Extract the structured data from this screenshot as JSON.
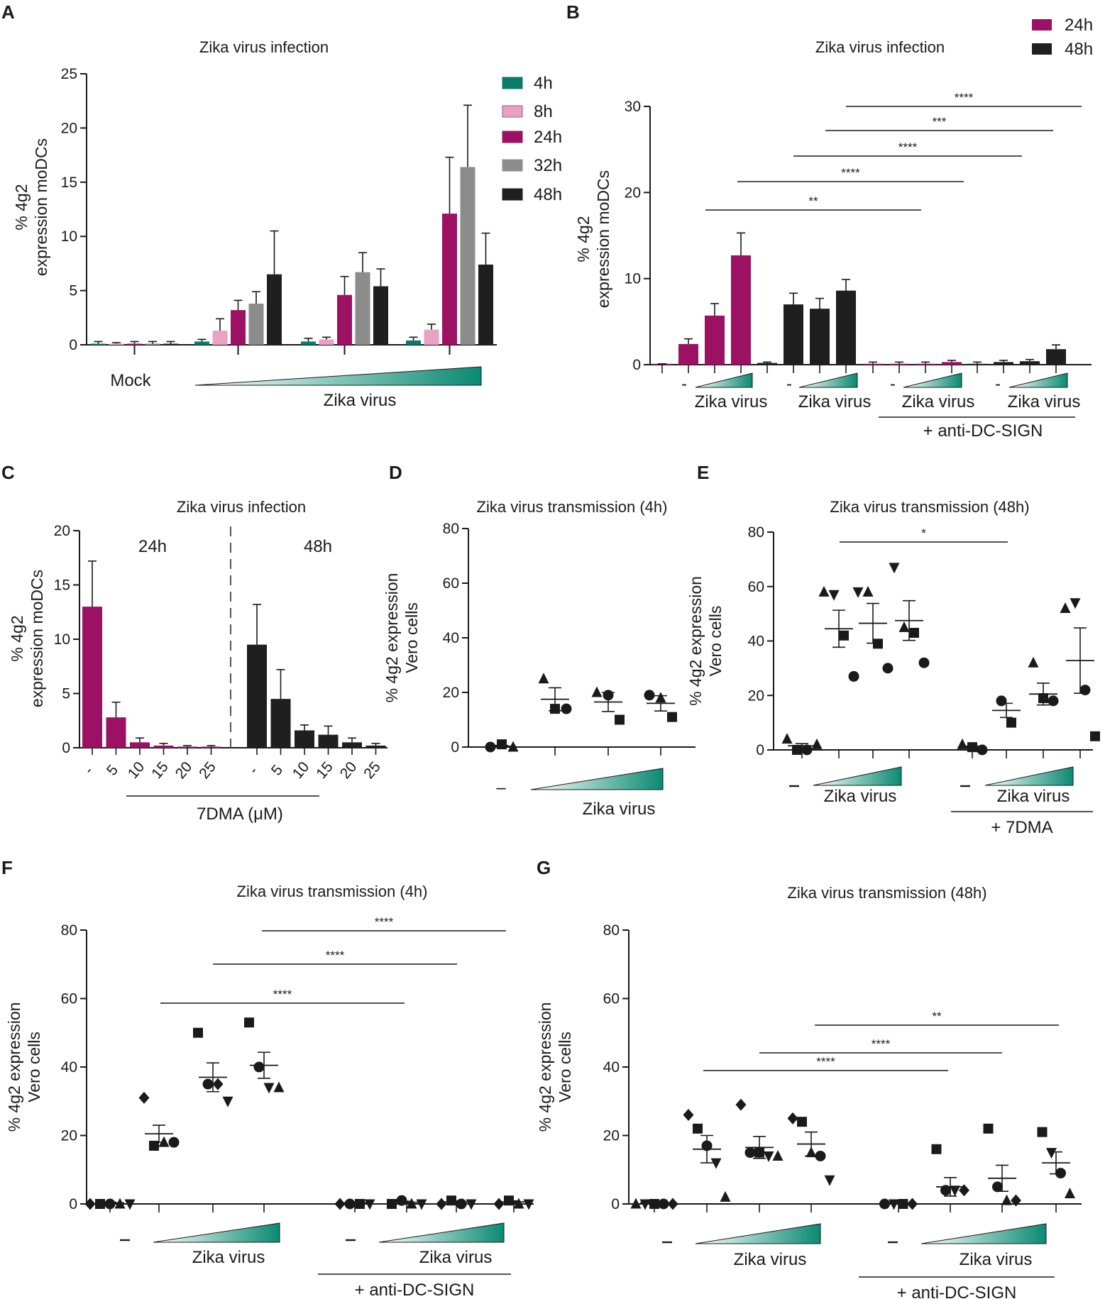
{
  "colors": {
    "h4": "#0b7a68",
    "h8": "#e8a3c4",
    "h24": "#9c1163",
    "h32": "#8c8c8c",
    "h48": "#1f1f1f",
    "teal": "#0a8a72",
    "axis": "#1a1a1a"
  },
  "chart_data": [
    {
      "panel": "A",
      "type": "bar",
      "title": "Zika virus infection",
      "ylabel": "% 4g2 expression moDCs",
      "ylim": [
        0,
        25
      ],
      "yticks": [
        "0",
        "5",
        "10",
        "15",
        "20",
        "25"
      ],
      "legend": [
        "4h",
        "8h",
        "24h",
        "32h",
        "48h"
      ],
      "groups": [
        {
          "label": "Mock",
          "values": [
            0.1,
            0.1,
            0.1,
            0.1,
            0.1
          ],
          "errors": [
            0.2,
            0.1,
            0.2,
            0.2,
            0.2
          ]
        },
        {
          "label": "",
          "values": [
            0.3,
            1.3,
            3.2,
            3.8,
            6.5
          ],
          "errors": [
            0.2,
            1.1,
            0.9,
            1.1,
            4.0
          ]
        },
        {
          "label": "",
          "values": [
            0.3,
            0.5,
            4.6,
            6.7,
            5.4
          ],
          "errors": [
            0.3,
            0.2,
            1.7,
            1.8,
            1.6
          ]
        },
        {
          "label": "",
          "values": [
            0.4,
            1.4,
            12.1,
            16.4,
            7.4
          ],
          "errors": [
            0.3,
            0.5,
            5.2,
            5.7,
            2.9
          ]
        }
      ],
      "xgroup_label": "Zika virus"
    },
    {
      "panel": "B",
      "type": "bar",
      "title": "Zika virus infection",
      "ylabel": "% 4g2 expression moDCs",
      "ylim": [
        0,
        30
      ],
      "yticks": [
        "0",
        "10",
        "20",
        "30"
      ],
      "legend": [
        "24h",
        "48h"
      ],
      "groups": [
        {
          "series": "24h",
          "dash_label": "-",
          "values": [
            0.1,
            2.4,
            5.7,
            12.7
          ],
          "errors": [
            0,
            0.6,
            1.4,
            2.6
          ],
          "label": "Zika virus"
        },
        {
          "series": "48h",
          "dash_label": "-",
          "values": [
            0.2,
            7.0,
            6.5,
            8.6
          ],
          "errors": [
            0.1,
            1.3,
            1.2,
            1.3
          ],
          "label": "Zika virus"
        },
        {
          "series": "24h",
          "dash_label": "-",
          "values": [
            0.1,
            0.1,
            0.1,
            0.3
          ],
          "errors": [
            0.2,
            0.2,
            0.2,
            0.2
          ],
          "label": "Zika virus"
        },
        {
          "series": "48h",
          "dash_label": "-",
          "values": [
            0.1,
            0.3,
            0.4,
            1.8
          ],
          "errors": [
            0.2,
            0.2,
            0.2,
            0.5
          ],
          "label": "Zika virus"
        }
      ],
      "bracket_label": "+ anti-DC-SIGN",
      "significance": [
        "****",
        "***",
        "****",
        "****",
        "**"
      ]
    },
    {
      "panel": "C",
      "type": "bar",
      "title": "Zika virus infection",
      "ylabel": "% 4g2 expression moDCs",
      "ylim": [
        0,
        20
      ],
      "yticks": [
        "0",
        "5",
        "10",
        "15",
        "20"
      ],
      "segment_labels": [
        "24h",
        "48h"
      ],
      "categories": [
        "-",
        "5",
        "10",
        "15",
        "20",
        "25"
      ],
      "series": [
        {
          "name": "24h",
          "values": [
            13.0,
            2.8,
            0.5,
            0.2,
            0.1,
            0.1
          ],
          "errors": [
            4.2,
            1.4,
            0.4,
            0.2,
            0.1,
            0.1
          ]
        },
        {
          "name": "48h",
          "values": [
            9.5,
            4.5,
            1.6,
            1.2,
            0.5,
            0.2
          ],
          "errors": [
            3.7,
            2.7,
            0.5,
            0.8,
            0.4,
            0.2
          ]
        }
      ],
      "xlabel": "7DMA (μM)"
    },
    {
      "panel": "D",
      "type": "scatter",
      "title": "Zika virus transmission (4h)",
      "ylabel": "% 4g2 expression Vero cells",
      "ylim": [
        0,
        80
      ],
      "yticks": [
        "0",
        "20",
        "40",
        "60",
        "80"
      ],
      "dash_label": "–",
      "xgroup_label": "Zika virus",
      "groups": [
        {
          "mean": 0.3,
          "sem": 0.3,
          "points": [
            {
              "shape": "circle",
              "y": 0
            },
            {
              "shape": "square",
              "y": 1
            },
            {
              "shape": "triangle",
              "y": 0
            }
          ]
        },
        {
          "mean": 17.5,
          "sem": 4.2,
          "points": [
            {
              "shape": "triangle",
              "y": 25
            },
            {
              "shape": "square",
              "y": 14
            },
            {
              "shape": "circle",
              "y": 14
            }
          ]
        },
        {
          "mean": 16.5,
          "sem": 3.5,
          "points": [
            {
              "shape": "triangle",
              "y": 20
            },
            {
              "shape": "circle",
              "y": 19
            },
            {
              "shape": "square",
              "y": 10
            }
          ]
        },
        {
          "mean": 16.0,
          "sem": 2.8,
          "points": [
            {
              "shape": "circle",
              "y": 19
            },
            {
              "shape": "triangle",
              "y": 18
            },
            {
              "shape": "square",
              "y": 11
            }
          ]
        }
      ]
    },
    {
      "panel": "E",
      "type": "scatter",
      "title": "Zika virus transmission (48h)",
      "ylabel": "% 4g2 expression Vero cells",
      "ylim": [
        0,
        80
      ],
      "yticks": [
        "0",
        "20",
        "40",
        "60",
        "80"
      ],
      "labels": [
        "Zika virus",
        "Zika virus"
      ],
      "bracket_label": "+ 7DMA",
      "significance": [
        "*"
      ],
      "groups": [
        {
          "mean": 1.5,
          "sem": 0.8,
          "points": [
            {
              "shape": "triangle",
              "y": 4
            },
            {
              "shape": "square",
              "y": 0
            },
            {
              "shape": "circle",
              "y": 0
            },
            {
              "shape": "triangle",
              "y": 2
            }
          ]
        },
        {
          "mean": 44.5,
          "sem": 6.8,
          "points": [
            {
              "shape": "triangle",
              "y": 58
            },
            {
              "shape": "triangle_down",
              "y": 57
            },
            {
              "shape": "square",
              "y": 42
            },
            {
              "shape": "circle",
              "y": 27
            }
          ]
        },
        {
          "mean": 46.5,
          "sem": 7.3,
          "points": [
            {
              "shape": "triangle_down",
              "y": 58
            },
            {
              "shape": "triangle",
              "y": 58
            },
            {
              "shape": "square",
              "y": 39
            },
            {
              "shape": "circle",
              "y": 30
            }
          ]
        },
        {
          "mean": 47.5,
          "sem": 7.3,
          "points": [
            {
              "shape": "triangle_down",
              "y": 67
            },
            {
              "shape": "triangle",
              "y": 45
            },
            {
              "shape": "square",
              "y": 43
            },
            {
              "shape": "circle",
              "y": 32
            }
          ]
        },
        {
          "mean": 1.0,
          "sem": 0.4,
          "points": [
            {
              "shape": "triangle",
              "y": 2
            },
            {
              "shape": "square",
              "y": 1
            },
            {
              "shape": "circle",
              "y": 0
            }
          ]
        },
        {
          "mean": 14.5,
          "sem": 2.6,
          "points": [
            {
              "shape": "circle",
              "y": 18
            },
            {
              "shape": "square",
              "y": 10
            }
          ]
        },
        {
          "mean": 20.5,
          "sem": 4.0,
          "points": [
            {
              "shape": "triangle",
              "y": 32
            },
            {
              "shape": "square",
              "y": 19
            },
            {
              "shape": "circle",
              "y": 18
            }
          ]
        },
        {
          "mean": 32.8,
          "sem": 12.0,
          "points": [
            {
              "shape": "triangle",
              "y": 52
            },
            {
              "shape": "triangle_down",
              "y": 54
            },
            {
              "shape": "circle",
              "y": 22
            },
            {
              "shape": "square",
              "y": 5
            }
          ]
        }
      ]
    },
    {
      "panel": "F",
      "type": "scatter",
      "title": "Zika virus transmission (4h)",
      "ylabel": "% 4g2 expression Vero cells",
      "ylim": [
        0,
        80
      ],
      "yticks": [
        "0",
        "20",
        "40",
        "60",
        "80"
      ],
      "labels": [
        "Zika virus",
        "Zika virus"
      ],
      "bracket_label": "+ anti-DC-SIGN",
      "significance": [
        "****",
        "****",
        "****"
      ],
      "groups": [
        {
          "mean": 0.3,
          "sem": 0.2,
          "points": [
            {
              "shape": "diamond",
              "y": 0
            },
            {
              "shape": "square",
              "y": 0
            },
            {
              "shape": "circle",
              "y": 0
            },
            {
              "shape": "triangle",
              "y": 0
            },
            {
              "shape": "triangle_down",
              "y": 0
            }
          ]
        },
        {
          "mean": 20.5,
          "sem": 2.5,
          "points": [
            {
              "shape": "diamond",
              "y": 31
            },
            {
              "shape": "square",
              "y": 17
            },
            {
              "shape": "triangle",
              "y": 18
            },
            {
              "shape": "circle",
              "y": 18
            }
          ]
        },
        {
          "mean": 37.0,
          "sem": 4.2,
          "points": [
            {
              "shape": "square",
              "y": 50
            },
            {
              "shape": "circle",
              "y": 35
            },
            {
              "shape": "diamond",
              "y": 35
            },
            {
              "shape": "triangle_down",
              "y": 30
            }
          ]
        },
        {
          "mean": 40.5,
          "sem": 3.8,
          "points": [
            {
              "shape": "square",
              "y": 53
            },
            {
              "shape": "circle",
              "y": 40
            },
            {
              "shape": "triangle_down",
              "y": 34
            },
            {
              "shape": "triangle",
              "y": 34
            }
          ]
        },
        {
          "mean": 0.3,
          "sem": 0.2,
          "points": [
            {
              "shape": "diamond",
              "y": 0
            },
            {
              "shape": "circle",
              "y": 0
            },
            {
              "shape": "square",
              "y": 0
            },
            {
              "shape": "triangle_down",
              "y": 0
            }
          ]
        },
        {
          "mean": 0.5,
          "sem": 0.3,
          "points": [
            {
              "shape": "square",
              "y": 0
            },
            {
              "shape": "circle",
              "y": 1
            },
            {
              "shape": "triangle",
              "y": 0
            },
            {
              "shape": "triangle_down",
              "y": 0
            }
          ]
        },
        {
          "mean": 0.6,
          "sem": 0.3,
          "points": [
            {
              "shape": "diamond",
              "y": 0
            },
            {
              "shape": "square",
              "y": 1
            },
            {
              "shape": "circle",
              "y": 0
            },
            {
              "shape": "triangle_down",
              "y": 0
            }
          ]
        },
        {
          "mean": 0.6,
          "sem": 0.3,
          "points": [
            {
              "shape": "diamond",
              "y": 0
            },
            {
              "shape": "square",
              "y": 1
            },
            {
              "shape": "triangle",
              "y": 0
            },
            {
              "shape": "triangle_down",
              "y": 0
            }
          ]
        }
      ]
    },
    {
      "panel": "G",
      "type": "scatter",
      "title": "Zika virus transmission (48h)",
      "ylabel": "% 4g2 expression Vero cells",
      "ylim": [
        0,
        80
      ],
      "yticks": [
        "0",
        "20",
        "40",
        "60",
        "80"
      ],
      "labels": [
        "Zika virus",
        "Zika virus"
      ],
      "bracket_label": "+ anti-DC-SIGN",
      "significance": [
        "**",
        "****",
        "****"
      ],
      "groups": [
        {
          "mean": 0.3,
          "sem": 0.2,
          "points": [
            {
              "shape": "triangle",
              "y": 0
            },
            {
              "shape": "triangle_down",
              "y": 0
            },
            {
              "shape": "square",
              "y": 0
            },
            {
              "shape": "circle",
              "y": 0
            },
            {
              "shape": "diamond",
              "y": 0
            }
          ]
        },
        {
          "mean": 16.0,
          "sem": 4.0,
          "points": [
            {
              "shape": "diamond",
              "y": 26
            },
            {
              "shape": "square",
              "y": 22
            },
            {
              "shape": "circle",
              "y": 17
            },
            {
              "shape": "triangle_down",
              "y": 12
            },
            {
              "shape": "triangle",
              "y": 2
            }
          ]
        },
        {
          "mean": 16.5,
          "sem": 3.2,
          "points": [
            {
              "shape": "diamond",
              "y": 29
            },
            {
              "shape": "circle",
              "y": 15
            },
            {
              "shape": "square",
              "y": 15
            },
            {
              "shape": "triangle_down",
              "y": 14
            },
            {
              "shape": "triangle",
              "y": 14
            }
          ]
        },
        {
          "mean": 17.5,
          "sem": 3.5,
          "points": [
            {
              "shape": "diamond",
              "y": 25
            },
            {
              "shape": "square",
              "y": 24
            },
            {
              "shape": "triangle",
              "y": 15
            },
            {
              "shape": "circle",
              "y": 14
            },
            {
              "shape": "triangle_down",
              "y": 7
            }
          ]
        },
        {
          "mean": 0.3,
          "sem": 0.2,
          "points": [
            {
              "shape": "circle",
              "y": 0
            },
            {
              "shape": "triangle_down",
              "y": 0
            },
            {
              "shape": "square",
              "y": 0
            },
            {
              "shape": "diamond",
              "y": 0
            }
          ]
        },
        {
          "mean": 5.0,
          "sem": 2.7,
          "points": [
            {
              "shape": "square",
              "y": 16
            },
            {
              "shape": "circle",
              "y": 4
            },
            {
              "shape": "triangle_down",
              "y": 4
            },
            {
              "shape": "diamond",
              "y": 4
            }
          ]
        },
        {
          "mean": 7.5,
          "sem": 3.8,
          "points": [
            {
              "shape": "square",
              "y": 22
            },
            {
              "shape": "circle",
              "y": 5
            },
            {
              "shape": "triangle",
              "y": 1
            },
            {
              "shape": "diamond",
              "y": 1
            }
          ]
        },
        {
          "mean": 12.0,
          "sem": 3.2,
          "points": [
            {
              "shape": "square",
              "y": 21
            },
            {
              "shape": "triangle_down",
              "y": 15
            },
            {
              "shape": "circle",
              "y": 9
            },
            {
              "shape": "triangle",
              "y": 3
            }
          ]
        }
      ]
    }
  ]
}
